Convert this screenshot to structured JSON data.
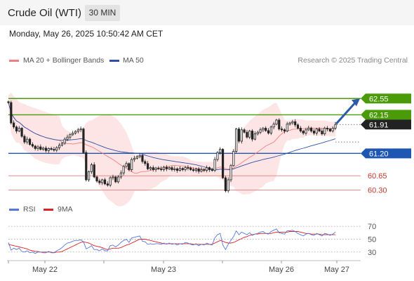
{
  "header": {
    "title": "Crude Oil (WTI)",
    "timeframe": "30 MIN"
  },
  "datetime": "Monday, May 26, 2025 10:50:42 AM CET",
  "attribution": "Research © 2025 Trading Central",
  "colors": {
    "resistance": "#4a9a0a",
    "support": "#1e56b4",
    "minor_support": "#e87b7b",
    "last_price_bg": "#222222",
    "candle": "#222222",
    "bollinger_fill": "#fde0e0",
    "ma20": "#f08080",
    "ma50": "#3050a8",
    "rsi": "#5577dd",
    "rsi_ma": "#dd2222",
    "arrow": "#2f5aa8"
  },
  "chart_data": [
    {
      "type": "candlestick",
      "legend": [
        {
          "name": "MA 20 + Bollinger Bands",
          "color": "#f08080"
        },
        {
          "name": "MA 50",
          "color": "#3050a8"
        }
      ],
      "x_tick_labels": [
        "May 22",
        "May 23",
        "May 26",
        "May 27"
      ],
      "ylim": [
        60.1,
        62.9
      ],
      "levels": [
        {
          "label": "62.55",
          "value": 62.55,
          "role": "resistance"
        },
        {
          "label": "62.15",
          "value": 62.15,
          "role": "resistance"
        },
        {
          "label": "61.91",
          "value": 61.91,
          "role": "last_price"
        },
        {
          "label": "61.20",
          "value": 61.2,
          "role": "support"
        },
        {
          "label": "60.65",
          "value": 60.65,
          "role": "minor_support"
        },
        {
          "label": "60.30",
          "value": 60.3,
          "role": "minor_support"
        }
      ],
      "close": [
        62.45,
        61.95,
        61.85,
        61.75,
        61.82,
        61.62,
        61.48,
        61.55,
        61.42,
        61.38,
        61.32,
        61.36,
        61.3,
        61.33,
        61.27,
        61.32,
        61.3,
        61.28,
        61.34,
        61.4,
        61.45,
        61.55,
        61.6,
        61.66,
        61.7,
        61.74,
        61.78,
        61.8,
        61.22,
        60.55,
        60.75,
        60.92,
        60.62,
        60.52,
        60.48,
        60.55,
        60.45,
        60.42,
        60.6,
        60.62,
        60.5,
        60.62,
        60.72,
        60.88,
        60.95,
        60.8,
        61.05,
        61.08,
        61.12,
        61.15,
        61.0,
        60.95,
        60.82,
        60.85,
        60.8,
        60.84,
        60.82,
        60.8,
        60.86,
        60.82,
        60.85,
        60.8,
        60.82,
        60.78,
        60.83,
        60.8,
        60.85,
        60.84,
        60.8,
        60.78,
        60.82,
        60.76,
        60.8,
        60.78,
        60.85,
        60.8,
        60.78,
        61.05,
        61.22,
        61.3,
        60.6,
        60.28,
        60.55,
        60.9,
        61.25,
        61.8,
        61.5,
        61.78,
        61.72,
        61.6,
        61.75,
        61.55,
        61.68,
        61.72,
        61.78,
        61.82,
        61.76,
        61.7,
        61.85,
        61.92,
        62.02,
        61.8,
        61.78,
        61.75,
        61.92,
        61.95,
        61.98,
        61.9,
        61.82,
        61.75,
        61.7,
        61.78,
        61.82,
        61.75,
        61.7,
        61.8,
        61.75,
        61.68,
        61.82,
        61.8,
        61.75,
        61.82,
        61.91
      ]
    },
    {
      "type": "line",
      "legend": [
        {
          "name": "RSI",
          "color": "#5577dd"
        },
        {
          "name": "9MA",
          "color": "#dd2222"
        }
      ],
      "ylim": [
        20,
        80
      ],
      "y_ticks": [
        70,
        50,
        30
      ],
      "series": [
        {
          "name": "RSI",
          "values": [
            45,
            33,
            36,
            34,
            36,
            31,
            30,
            32,
            29,
            30,
            28,
            30,
            30,
            29,
            29,
            31,
            29,
            29,
            32,
            34,
            37,
            41,
            44,
            45,
            47,
            48,
            48,
            49,
            46,
            35,
            37,
            40,
            34,
            34,
            32,
            35,
            32,
            32,
            40,
            41,
            38,
            41,
            45,
            48,
            50,
            45,
            52,
            53,
            54,
            55,
            47,
            46,
            42,
            43,
            42,
            43,
            43,
            42,
            44,
            42,
            44,
            42,
            43,
            41,
            43,
            42,
            45,
            44,
            42,
            41,
            43,
            40,
            42,
            41,
            44,
            42,
            41,
            52,
            57,
            59,
            41,
            34,
            42,
            48,
            54,
            63,
            57,
            61,
            59,
            57,
            60,
            56,
            58,
            59,
            61,
            62,
            59,
            58,
            62,
            64,
            66,
            60,
            59,
            58,
            63,
            63,
            64,
            62,
            59,
            57,
            55,
            58,
            59,
            57,
            56,
            59,
            57,
            55,
            59,
            58,
            56,
            58,
            61
          ]
        },
        {
          "name": "9MA",
          "values": [
            42,
            41,
            40,
            39,
            38,
            37,
            36,
            35,
            33,
            32,
            31,
            31,
            30,
            30,
            30,
            30,
            30,
            29,
            30,
            30,
            31,
            33,
            35,
            37,
            39,
            41,
            43,
            45,
            46,
            45,
            44,
            42,
            40,
            39,
            38,
            37,
            35,
            34,
            35,
            36,
            36,
            36,
            37,
            39,
            41,
            42,
            44,
            46,
            48,
            50,
            50,
            50,
            49,
            48,
            47,
            46,
            45,
            44,
            43,
            43,
            43,
            43,
            43,
            43,
            43,
            43,
            43,
            43,
            43,
            42,
            42,
            42,
            42,
            42,
            42,
            42,
            42,
            44,
            46,
            48,
            47,
            45,
            44,
            44,
            45,
            47,
            49,
            51,
            53,
            54,
            56,
            57,
            58,
            58,
            59,
            59,
            59,
            59,
            59,
            60,
            61,
            61,
            61,
            61,
            61,
            62,
            62,
            62,
            62,
            61,
            60,
            59,
            59,
            58,
            58,
            58,
            58,
            57,
            57,
            57,
            57,
            57,
            57
          ]
        }
      ]
    }
  ]
}
